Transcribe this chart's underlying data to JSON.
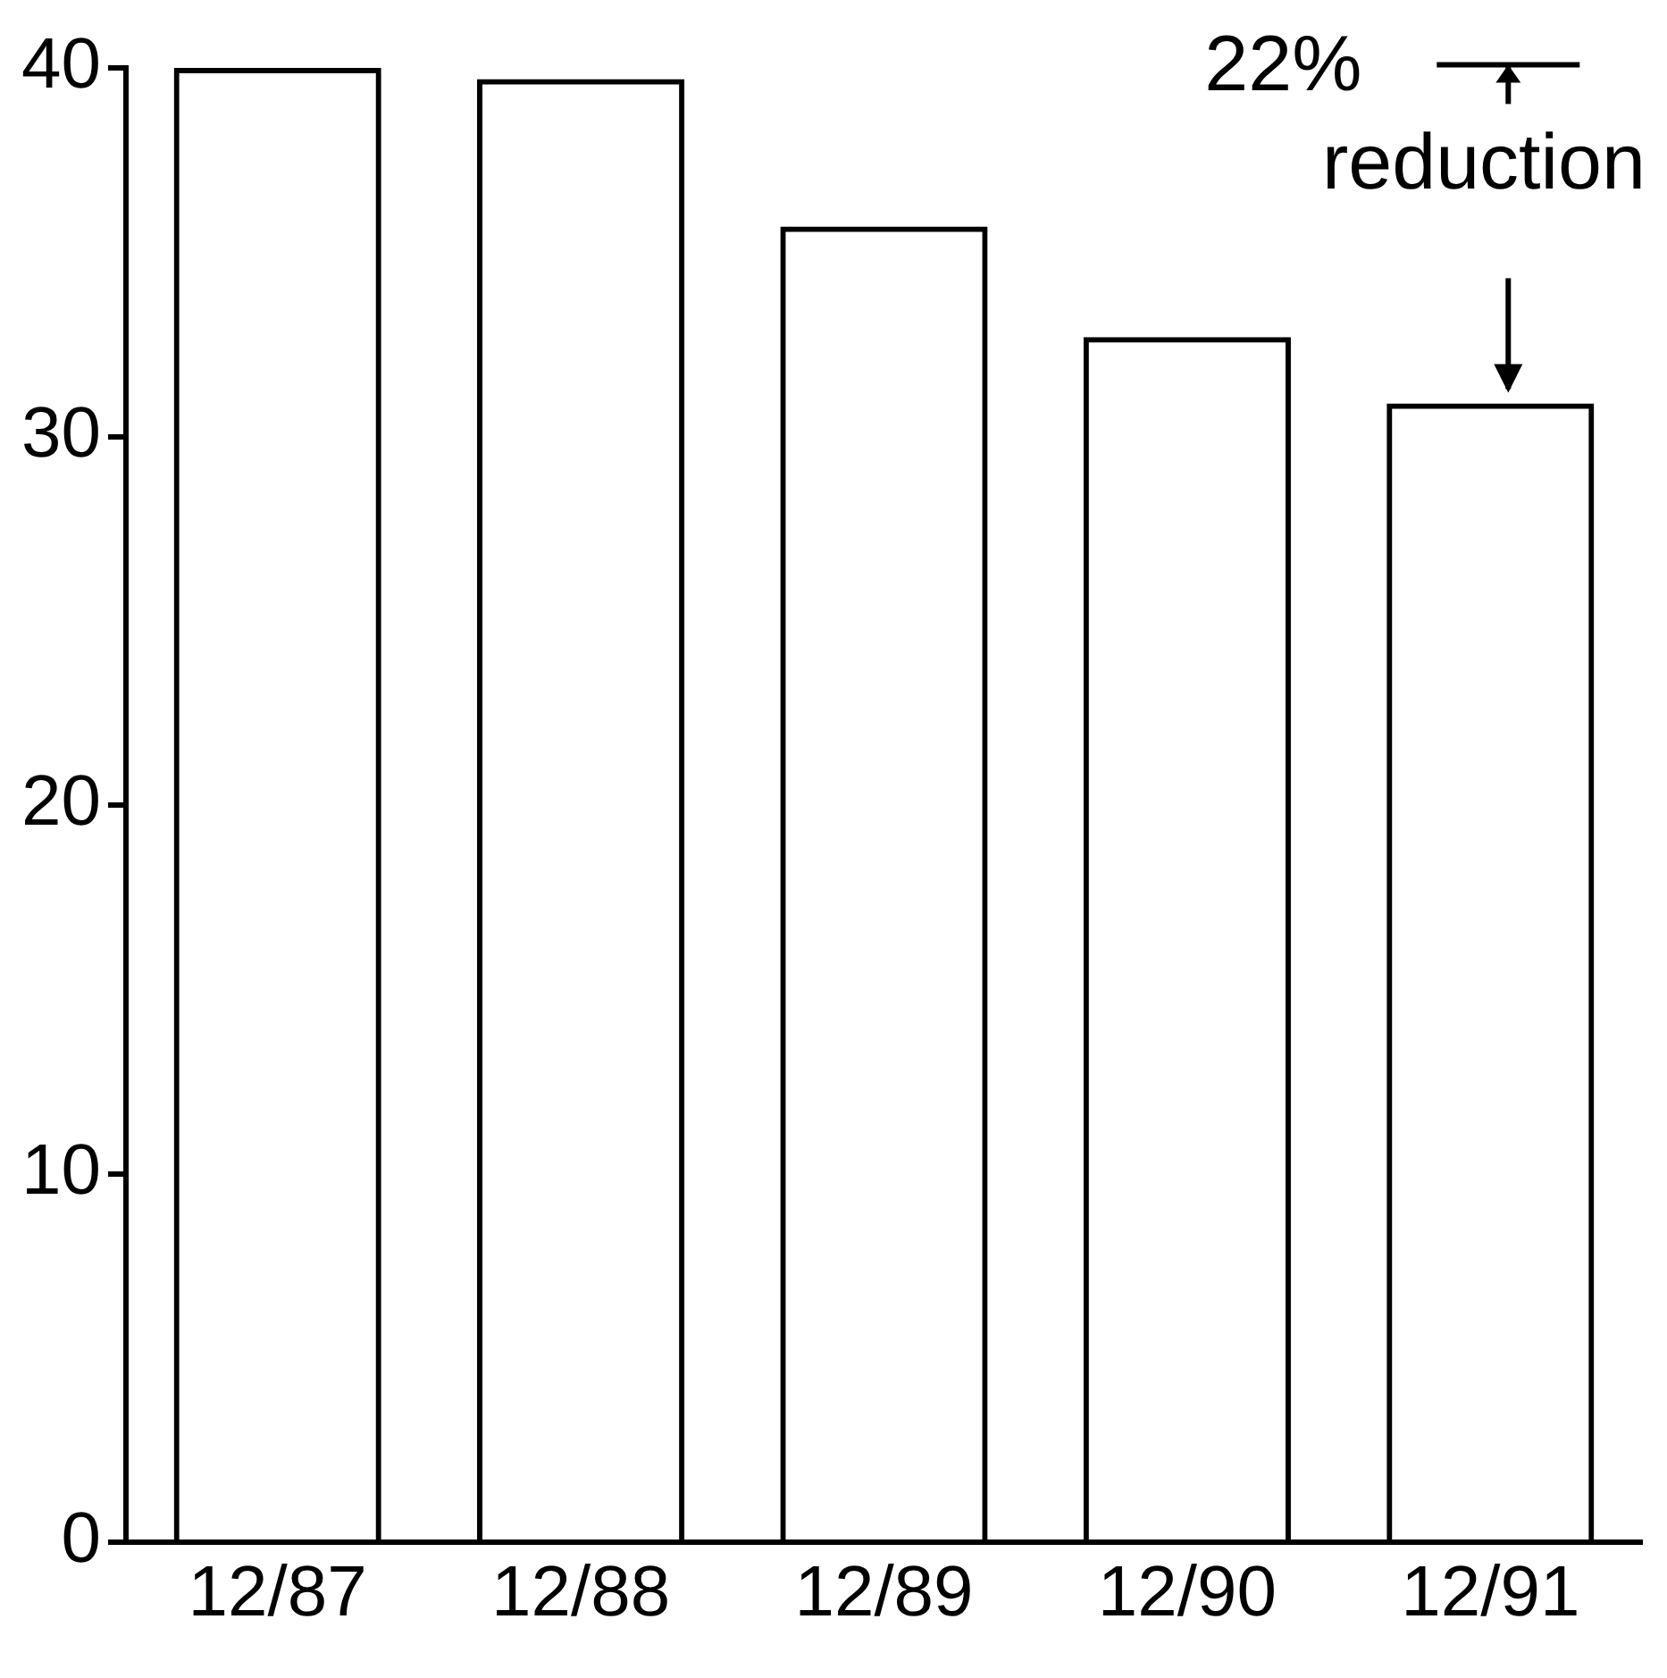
{
  "chart_data": {
    "type": "bar",
    "categories": [
      "12/87",
      "12/88",
      "12/89",
      "12/90",
      "12/91"
    ],
    "values": [
      40,
      39.7,
      35.7,
      32.7,
      30.9
    ],
    "color": "#000000",
    "ylim": [
      0,
      40
    ],
    "yticks": [
      0,
      10,
      20,
      30,
      40
    ],
    "grid": false,
    "legend": false,
    "annotations": [
      {
        "text": "22% reduction",
        "x": "12/91",
        "y": 30.9
      }
    ]
  }
}
